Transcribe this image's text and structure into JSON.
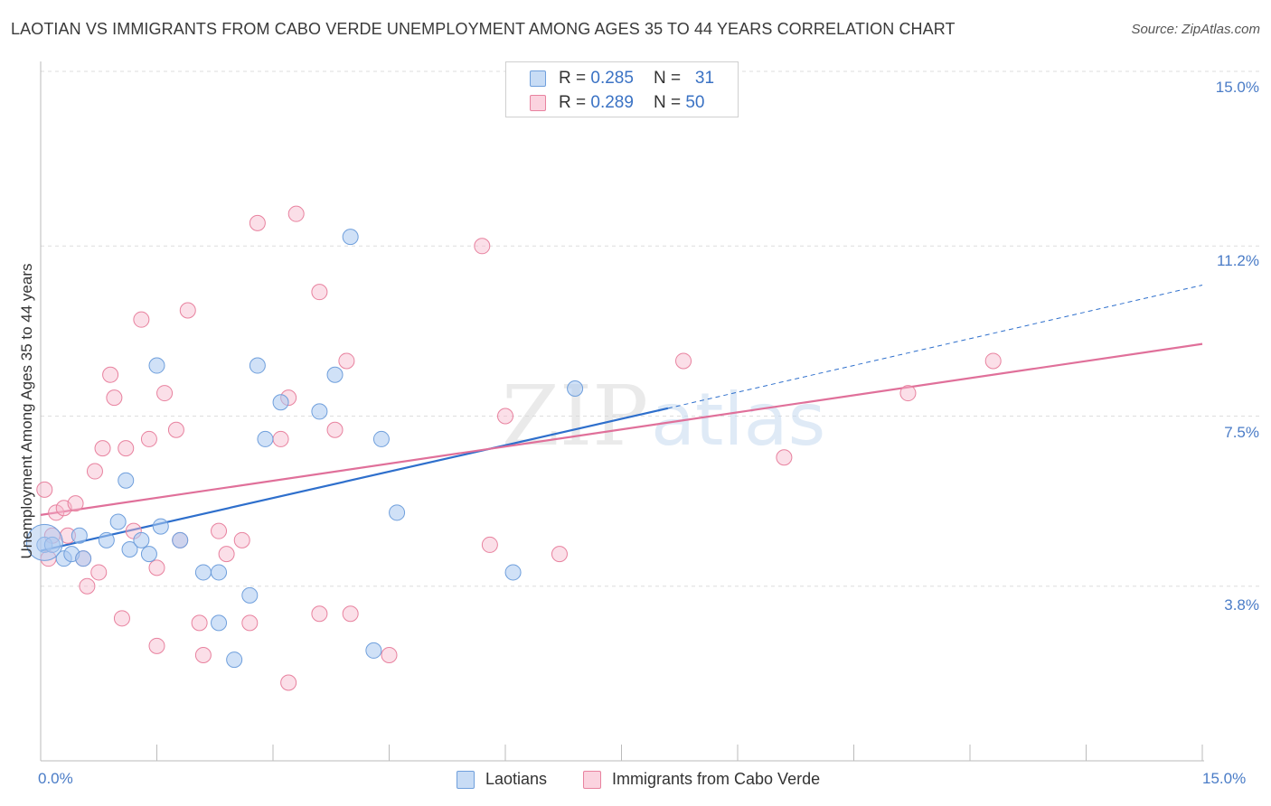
{
  "title": "LAOTIAN VS IMMIGRANTS FROM CABO VERDE UNEMPLOYMENT AMONG AGES 35 TO 44 YEARS CORRELATION CHART",
  "source": "Source: ZipAtlas.com",
  "watermark": {
    "zip": "ZIP",
    "atlas": "atlas"
  },
  "legend_top": {
    "rows": [
      {
        "r_label": "R =",
        "r_value": "0.285",
        "n_label": "N =",
        "n_value": "31",
        "color": "#a9c8f0"
      },
      {
        "r_label": "R =",
        "r_value": "0.289",
        "n_label": "N =",
        "n_value": "50",
        "color": "#f7b8cb"
      }
    ]
  },
  "colors": {
    "laotian_fill": "#a9c8f0",
    "laotian_stroke": "#6f9fdc",
    "laotian_line": "#2e6fcc",
    "cabo_fill": "#f7b8cb",
    "cabo_stroke": "#e8829f",
    "cabo_line": "#e0709a",
    "axis_label": "#4a7cc7",
    "grid": "#dddddd"
  },
  "chart_data": {
    "type": "scatter",
    "title": "LAOTIAN VS IMMIGRANTS FROM CABO VERDE UNEMPLOYMENT AMONG AGES 35 TO 44 YEARS CORRELATION CHART",
    "xlabel": "",
    "ylabel": "Unemployment Among Ages 35 to 44 years",
    "xlim": [
      0,
      15
    ],
    "ylim": [
      0,
      15
    ],
    "x_tick_labels": [
      "0.0%",
      "15.0%"
    ],
    "y_ticks": [
      3.8,
      7.5,
      11.2,
      15.0
    ],
    "y_tick_labels": [
      "3.8%",
      "7.5%",
      "11.2%",
      "15.0%"
    ],
    "grid": true,
    "legend_position": "bottom",
    "series": [
      {
        "name": "Laotians",
        "points": [
          [
            0.05,
            4.7
          ],
          [
            0.15,
            4.7
          ],
          [
            0.3,
            4.4
          ],
          [
            0.4,
            4.5
          ],
          [
            0.5,
            4.9
          ],
          [
            0.55,
            4.4
          ],
          [
            0.85,
            4.8
          ],
          [
            1.0,
            5.2
          ],
          [
            1.15,
            4.6
          ],
          [
            1.1,
            6.1
          ],
          [
            1.3,
            4.8
          ],
          [
            1.4,
            4.5
          ],
          [
            1.5,
            8.6
          ],
          [
            1.55,
            5.1
          ],
          [
            1.8,
            4.8
          ],
          [
            2.1,
            4.1
          ],
          [
            2.3,
            3.0
          ],
          [
            2.5,
            2.2
          ],
          [
            2.7,
            3.6
          ],
          [
            2.8,
            8.6
          ],
          [
            2.9,
            7.0
          ],
          [
            3.1,
            7.8
          ],
          [
            3.6,
            7.6
          ],
          [
            3.8,
            8.4
          ],
          [
            4.0,
            11.4
          ],
          [
            4.3,
            2.4
          ],
          [
            4.4,
            7.0
          ],
          [
            4.6,
            5.4
          ],
          [
            6.1,
            4.1
          ],
          [
            6.9,
            8.1
          ],
          [
            2.3,
            4.1
          ]
        ],
        "trend": {
          "x0": 0.0,
          "y0": 4.57,
          "x1": 8.1,
          "y1": 7.67,
          "dashed_to_x": 15.0,
          "dashed_to_y": 10.35
        }
      },
      {
        "name": "Immigrants from Cabo Verde",
        "points": [
          [
            0.05,
            5.9
          ],
          [
            0.1,
            4.4
          ],
          [
            0.2,
            5.4
          ],
          [
            0.3,
            5.5
          ],
          [
            0.35,
            4.9
          ],
          [
            0.45,
            5.6
          ],
          [
            0.55,
            4.4
          ],
          [
            0.6,
            3.8
          ],
          [
            0.7,
            6.3
          ],
          [
            0.75,
            4.1
          ],
          [
            0.8,
            6.8
          ],
          [
            0.9,
            8.4
          ],
          [
            0.95,
            7.9
          ],
          [
            1.05,
            3.1
          ],
          [
            1.1,
            6.8
          ],
          [
            1.2,
            5.0
          ],
          [
            1.3,
            9.6
          ],
          [
            1.4,
            7.0
          ],
          [
            1.5,
            4.2
          ],
          [
            1.6,
            8.0
          ],
          [
            1.75,
            7.2
          ],
          [
            1.8,
            4.8
          ],
          [
            1.9,
            9.8
          ],
          [
            2.05,
            3.0
          ],
          [
            2.1,
            2.3
          ],
          [
            2.3,
            5.0
          ],
          [
            2.4,
            4.5
          ],
          [
            2.6,
            4.8
          ],
          [
            2.8,
            11.7
          ],
          [
            3.1,
            7.0
          ],
          [
            3.2,
            7.9
          ],
          [
            3.3,
            11.9
          ],
          [
            3.6,
            10.2
          ],
          [
            3.6,
            3.2
          ],
          [
            3.8,
            7.2
          ],
          [
            3.95,
            8.7
          ],
          [
            4.0,
            3.2
          ],
          [
            4.5,
            2.3
          ],
          [
            5.7,
            11.2
          ],
          [
            5.8,
            4.7
          ],
          [
            6.0,
            7.5
          ],
          [
            6.7,
            4.5
          ],
          [
            8.3,
            8.7
          ],
          [
            9.6,
            6.6
          ],
          [
            11.2,
            8.0
          ],
          [
            12.3,
            8.7
          ],
          [
            0.15,
            4.9
          ],
          [
            1.5,
            2.5
          ],
          [
            3.2,
            1.7
          ],
          [
            2.7,
            3.0
          ]
        ],
        "trend": {
          "x0": 0.0,
          "y0": 5.35,
          "x1": 15.0,
          "y1": 9.07
        }
      }
    ]
  },
  "legend_bottom": {
    "items": [
      {
        "label": "Laotians",
        "color": "#a9c8f0"
      },
      {
        "label": "Immigrants from Cabo Verde",
        "color": "#f7b8cb"
      }
    ]
  }
}
